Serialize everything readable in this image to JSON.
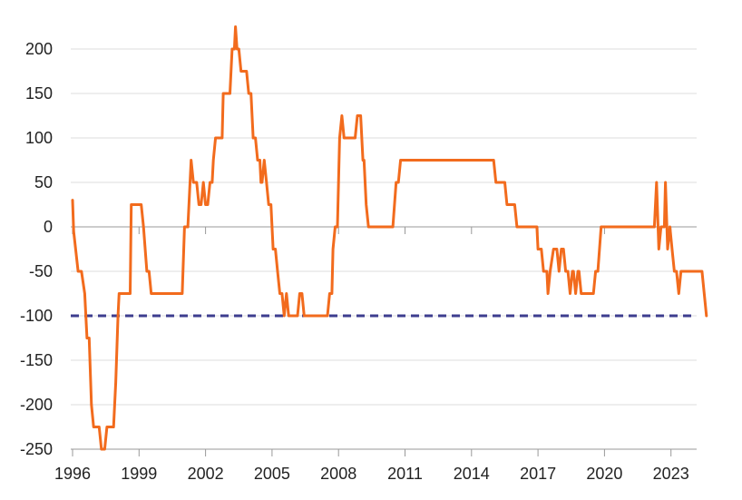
{
  "chart_data": {
    "type": "line",
    "title": "",
    "xlabel": "",
    "ylabel": "",
    "xlim": [
      1996,
      2024.9
    ],
    "ylim": [
      -250,
      225
    ],
    "x_ticks": [
      1996,
      1999,
      2002,
      2005,
      2008,
      2011,
      2014,
      2017,
      2020,
      2023
    ],
    "x_tick_labels": [
      "1996",
      "1999",
      "2002",
      "2005",
      "2008",
      "2011",
      "2014",
      "2017",
      "2020",
      "2023"
    ],
    "y_ticks": [
      200,
      150,
      100,
      50,
      0,
      -50,
      -100,
      -150,
      -200,
      -250
    ],
    "y_tick_labels": [
      "200",
      "150",
      "100",
      "50",
      "0",
      "-50",
      "-100",
      "-150",
      "-200",
      "-250"
    ],
    "grid": "horizontal",
    "legend": "none",
    "reference_line": {
      "y": -100,
      "style": "dashed",
      "color": "#3d3d8f"
    },
    "series": [
      {
        "color": "#f26b1d",
        "points": [
          [
            1996.0,
            30
          ],
          [
            1996.05,
            -5
          ],
          [
            1996.25,
            -50
          ],
          [
            1996.4,
            -50
          ],
          [
            1996.55,
            -75
          ],
          [
            1996.65,
            -125
          ],
          [
            1996.75,
            -125
          ],
          [
            1996.85,
            -200
          ],
          [
            1996.95,
            -225
          ],
          [
            1997.2,
            -225
          ],
          [
            1997.3,
            -250
          ],
          [
            1997.45,
            -250
          ],
          [
            1997.55,
            -225
          ],
          [
            1997.85,
            -225
          ],
          [
            1997.95,
            -175
          ],
          [
            1998.05,
            -100
          ],
          [
            1998.1,
            -75
          ],
          [
            1998.6,
            -75
          ],
          [
            1998.65,
            25
          ],
          [
            1999.1,
            25
          ],
          [
            1999.2,
            0
          ],
          [
            1999.35,
            -50
          ],
          [
            1999.45,
            -50
          ],
          [
            1999.55,
            -75
          ],
          [
            2000.95,
            -75
          ],
          [
            2001.05,
            0
          ],
          [
            2001.2,
            0
          ],
          [
            2001.3,
            50
          ],
          [
            2001.35,
            75
          ],
          [
            2001.45,
            50
          ],
          [
            2001.6,
            50
          ],
          [
            2001.7,
            25
          ],
          [
            2001.8,
            25
          ],
          [
            2001.9,
            50
          ],
          [
            2002.0,
            25
          ],
          [
            2002.1,
            25
          ],
          [
            2002.2,
            50
          ],
          [
            2002.3,
            50
          ],
          [
            2002.35,
            75
          ],
          [
            2002.45,
            100
          ],
          [
            2002.75,
            100
          ],
          [
            2002.8,
            150
          ],
          [
            2003.1,
            150
          ],
          [
            2003.2,
            200
          ],
          [
            2003.3,
            200
          ],
          [
            2003.35,
            225
          ],
          [
            2003.42,
            200
          ],
          [
            2003.5,
            200
          ],
          [
            2003.6,
            175
          ],
          [
            2003.85,
            175
          ],
          [
            2003.95,
            150
          ],
          [
            2004.05,
            150
          ],
          [
            2004.15,
            100
          ],
          [
            2004.25,
            100
          ],
          [
            2004.35,
            75
          ],
          [
            2004.45,
            75
          ],
          [
            2004.5,
            50
          ],
          [
            2004.55,
            50
          ],
          [
            2004.65,
            75
          ],
          [
            2004.75,
            50
          ],
          [
            2004.85,
            25
          ],
          [
            2004.95,
            25
          ],
          [
            2005.05,
            -25
          ],
          [
            2005.15,
            -25
          ],
          [
            2005.25,
            -50
          ],
          [
            2005.35,
            -75
          ],
          [
            2005.45,
            -75
          ],
          [
            2005.55,
            -100
          ],
          [
            2005.65,
            -75
          ],
          [
            2005.75,
            -100
          ],
          [
            2006.15,
            -100
          ],
          [
            2006.25,
            -75
          ],
          [
            2006.35,
            -75
          ],
          [
            2006.45,
            -100
          ],
          [
            2007.5,
            -100
          ],
          [
            2007.6,
            -75
          ],
          [
            2007.7,
            -75
          ],
          [
            2007.75,
            -25
          ],
          [
            2007.85,
            0
          ],
          [
            2007.95,
            0
          ],
          [
            2008.05,
            100
          ],
          [
            2008.15,
            125
          ],
          [
            2008.25,
            100
          ],
          [
            2008.75,
            100
          ],
          [
            2008.85,
            125
          ],
          [
            2009.0,
            125
          ],
          [
            2009.1,
            75
          ],
          [
            2009.15,
            75
          ],
          [
            2009.25,
            25
          ],
          [
            2009.35,
            0
          ],
          [
            2010.45,
            0
          ],
          [
            2010.6,
            50
          ],
          [
            2010.7,
            50
          ],
          [
            2010.8,
            75
          ],
          [
            2015.0,
            75
          ],
          [
            2015.1,
            50
          ],
          [
            2015.5,
            50
          ],
          [
            2015.6,
            25
          ],
          [
            2015.95,
            25
          ],
          [
            2016.05,
            0
          ],
          [
            2016.95,
            0
          ],
          [
            2017.0,
            -25
          ],
          [
            2017.15,
            -25
          ],
          [
            2017.25,
            -50
          ],
          [
            2017.4,
            -50
          ],
          [
            2017.45,
            -75
          ],
          [
            2017.55,
            -50
          ],
          [
            2017.7,
            -25
          ],
          [
            2017.85,
            -25
          ],
          [
            2017.95,
            -50
          ],
          [
            2018.05,
            -25
          ],
          [
            2018.15,
            -25
          ],
          [
            2018.25,
            -50
          ],
          [
            2018.35,
            -50
          ],
          [
            2018.45,
            -75
          ],
          [
            2018.55,
            -50
          ],
          [
            2018.6,
            -50
          ],
          [
            2018.7,
            -75
          ],
          [
            2018.8,
            -50
          ],
          [
            2018.85,
            -50
          ],
          [
            2018.95,
            -75
          ],
          [
            2019.5,
            -75
          ],
          [
            2019.6,
            -50
          ],
          [
            2019.7,
            -50
          ],
          [
            2019.85,
            0
          ],
          [
            2022.25,
            0
          ],
          [
            2022.35,
            50
          ],
          [
            2022.45,
            -25
          ],
          [
            2022.55,
            0
          ],
          [
            2022.7,
            0
          ],
          [
            2022.75,
            50
          ],
          [
            2022.85,
            -25
          ],
          [
            2022.95,
            0
          ],
          [
            2023.05,
            -25
          ],
          [
            2023.15,
            -50
          ],
          [
            2023.25,
            -50
          ],
          [
            2023.35,
            -75
          ],
          [
            2023.45,
            -50
          ],
          [
            2024.4,
            -50
          ],
          [
            2024.6,
            -100
          ]
        ]
      }
    ]
  }
}
